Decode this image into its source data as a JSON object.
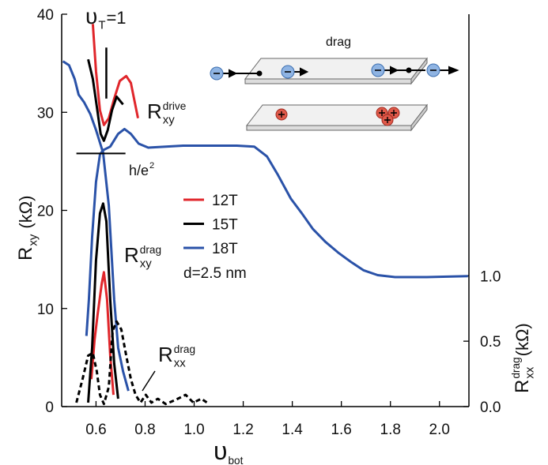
{
  "chart_data": {
    "type": "line",
    "x_label": {
      "main": "υ",
      "sub": "bot"
    },
    "y_label": {
      "main": "R",
      "sub": "xy",
      "rest": " (kΩ)"
    },
    "y2_label": {
      "main": "R",
      "sub": "xx",
      "sup": "drag",
      "rest": "(kΩ)"
    },
    "xlim": [
      0.46,
      2.12
    ],
    "xticks": [
      0.6,
      0.8,
      {
        "value": 1,
        "label": "1.0"
      },
      1.2,
      1.4,
      1.6,
      1.8,
      {
        "value": 2,
        "label": "2.0"
      }
    ],
    "ylim": [
      0,
      40
    ],
    "yticks": [
      0,
      10,
      20,
      30,
      40
    ],
    "y2lim": [
      0,
      3
    ],
    "y2ticks": [
      {
        "value": 0,
        "label": "0.0"
      },
      {
        "value": 0.5,
        "label": "0.5"
      },
      {
        "value": 1,
        "label": "1.0"
      }
    ],
    "series": [
      {
        "name": "12T",
        "color": "#e0262b",
        "x": [
          0.581,
          0.594,
          0.606,
          0.623,
          0.632,
          0.645,
          0.658,
          0.671
        ],
        "values": [
          2.8,
          6.8,
          9.3,
          12.5,
          13.7,
          10.9,
          5.2,
          1.2
        ]
      },
      {
        "name": "15T",
        "color": "#000000",
        "x": [
          0.568,
          0.584,
          0.6,
          0.616,
          0.629,
          0.642,
          0.658,
          0.674,
          0.69
        ],
        "values": [
          0.4,
          6.0,
          14.9,
          19.7,
          20.7,
          18.9,
          10.9,
          4.4,
          0.8
        ]
      },
      {
        "name": "18T",
        "color": "#2a52a8",
        "x": [
          0.561,
          0.571,
          0.584,
          0.6,
          0.616,
          0.628,
          0.652,
          0.674,
          0.69,
          0.71,
          0.732
        ],
        "values": [
          7.2,
          10.9,
          17.3,
          22.9,
          25.7,
          26.1,
          20.5,
          10.9,
          6.0,
          3.6,
          1.6
        ]
      }
    ],
    "drive_curves": [
      {
        "color": "#e0262b",
        "x": [
          0.587,
          0.6,
          0.616,
          0.632,
          0.652,
          0.674,
          0.697,
          0.723,
          0.742,
          0.755,
          0.771
        ],
        "values": [
          39.0,
          34.2,
          30.2,
          28.7,
          29.4,
          31.4,
          33.2,
          33.7,
          33.0,
          31.4,
          29.4
        ]
      },
      {
        "color": "#000000",
        "x": [
          0.568,
          0.587,
          0.603,
          0.619,
          0.632,
          0.648,
          0.665,
          0.684,
          0.7,
          0.71
        ],
        "values": [
          35.4,
          33.4,
          30.6,
          27.8,
          27.1,
          28.2,
          30.2,
          31.6,
          31.1,
          30.8
        ]
      },
      {
        "color": "#2a52a8",
        "x": [
          0.465,
          0.49,
          0.513,
          0.529,
          0.552,
          0.577,
          0.6,
          0.626,
          0.658,
          0.69,
          0.716,
          0.742,
          0.774,
          0.813,
          0.884,
          0.955,
          1.045,
          1.174,
          1.245,
          1.297,
          1.342,
          1.394,
          1.439,
          1.484,
          1.535,
          1.587,
          1.642,
          1.69,
          1.748,
          1.819,
          1.948,
          2.116
        ],
        "values": [
          35.2,
          34.8,
          33.4,
          31.8,
          31.0,
          29.8,
          28.2,
          26.1,
          26.5,
          27.8,
          28.3,
          27.8,
          26.8,
          26.4,
          26.5,
          26.6,
          26.6,
          26.6,
          26.5,
          25.5,
          23.6,
          21.2,
          19.7,
          18.1,
          16.8,
          15.7,
          14.7,
          13.9,
          13.4,
          13.2,
          13.2,
          13.3
        ]
      }
    ],
    "rxx_drag": {
      "axis": "y2",
      "color": "#000000",
      "dash": true,
      "x": [
        0.52,
        0.545,
        0.568,
        0.587,
        0.603,
        0.616,
        0.632,
        0.652,
        0.668,
        0.684,
        0.703,
        0.723,
        0.742,
        0.761,
        0.781,
        0.803,
        0.826,
        0.852,
        0.884,
        0.923,
        0.965,
        0.997,
        1.029,
        1.061
      ],
      "values": [
        0.03,
        0.21,
        0.39,
        0.41,
        0.27,
        0.09,
        0.02,
        0.15,
        0.58,
        0.65,
        0.59,
        0.39,
        0.21,
        0.09,
        0.03,
        0.09,
        0.03,
        0.06,
        0.02,
        0.05,
        0.09,
        0.03,
        0.06,
        0.02
      ]
    },
    "h_line": {
      "y": 25.8,
      "x": [
        0.52,
        0.72
      ]
    },
    "vt_line": {
      "x": 0.642,
      "y": [
        31.4,
        36.6
      ]
    },
    "annotations": {
      "nu_t": {
        "main": "υ",
        "sub": "T",
        "rest": "=1"
      },
      "rxy_drive": {
        "main": "R",
        "sub": "xy",
        "sup": "drive"
      },
      "h_e2": {
        "main": "h/e",
        "sup": "2"
      },
      "rxy_drag": {
        "main": "R",
        "sub": "xy",
        "sup": "drag"
      },
      "rxx_drag": {
        "main": "R",
        "sub": "xx",
        "sup": "drag"
      },
      "spacing": "d=2.5 nm",
      "inset": "drag"
    }
  }
}
